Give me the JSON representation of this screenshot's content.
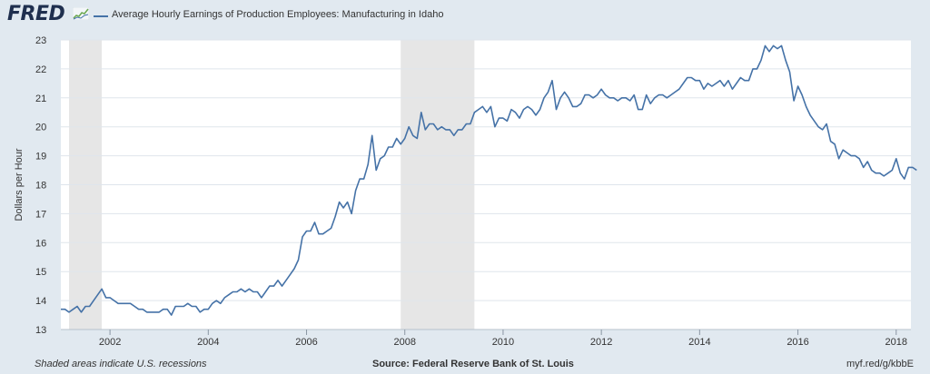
{
  "header": {
    "logo_text": "FRED",
    "logo_icon": "fred-sparkline-icon",
    "series_title": "Average Hourly Earnings of Production Employees: Manufacturing in Idaho"
  },
  "footer": {
    "note": "Shaded areas indicate U.S. recessions",
    "source": "Source: Federal Reserve Bank of St. Louis",
    "link": "myf.red/g/kbbE"
  },
  "colors": {
    "page_background": "#e1e9f0",
    "plot_background": "#ffffff",
    "line": "#4572a7",
    "recession_shading": "#e6e6e6",
    "gridline": "#dfe5ec"
  },
  "chart_data": {
    "type": "line",
    "title": "Average Hourly Earnings of Production Employees: Manufacturing in Idaho",
    "ylabel": "Dollars per Hour",
    "xlabel": "",
    "xlim": [
      2001.0,
      2018.3
    ],
    "ylim": [
      13,
      23
    ],
    "grid": "horizontal",
    "legend": "top-left",
    "x_ticks": [
      2002,
      2004,
      2006,
      2008,
      2010,
      2012,
      2014,
      2016,
      2018
    ],
    "x_tick_labels": [
      "2002",
      "2004",
      "2006",
      "2008",
      "2010",
      "2012",
      "2014",
      "2016",
      "2018"
    ],
    "y_ticks": [
      13,
      14,
      15,
      16,
      17,
      18,
      19,
      20,
      21,
      22,
      23
    ],
    "y_tick_labels": [
      "13",
      "14",
      "15",
      "16",
      "17",
      "18",
      "19",
      "20",
      "21",
      "22",
      "23"
    ],
    "recessions": [
      {
        "start": "2001-03",
        "end": "2001-11"
      },
      {
        "start": "2007-12",
        "end": "2009-06"
      }
    ],
    "series": [
      {
        "name": "Average Hourly Earnings of Production Employees: Manufacturing in Idaho",
        "points": [
          [
            "2001-01",
            13.7
          ],
          [
            "2001-02",
            13.7
          ],
          [
            "2001-03",
            13.6
          ],
          [
            "2001-04",
            13.7
          ],
          [
            "2001-05",
            13.8
          ],
          [
            "2001-06",
            13.6
          ],
          [
            "2001-07",
            13.8
          ],
          [
            "2001-08",
            13.8
          ],
          [
            "2001-09",
            14.0
          ],
          [
            "2001-10",
            14.2
          ],
          [
            "2001-11",
            14.4
          ],
          [
            "2001-12",
            14.1
          ],
          [
            "2002-01",
            14.1
          ],
          [
            "2002-02",
            14.0
          ],
          [
            "2002-03",
            13.9
          ],
          [
            "2002-04",
            13.9
          ],
          [
            "2002-05",
            13.9
          ],
          [
            "2002-06",
            13.9
          ],
          [
            "2002-07",
            13.8
          ],
          [
            "2002-08",
            13.7
          ],
          [
            "2002-09",
            13.7
          ],
          [
            "2002-10",
            13.6
          ],
          [
            "2002-11",
            13.6
          ],
          [
            "2002-12",
            13.6
          ],
          [
            "2003-01",
            13.6
          ],
          [
            "2003-02",
            13.7
          ],
          [
            "2003-03",
            13.7
          ],
          [
            "2003-04",
            13.5
          ],
          [
            "2003-05",
            13.8
          ],
          [
            "2003-06",
            13.8
          ],
          [
            "2003-07",
            13.8
          ],
          [
            "2003-08",
            13.9
          ],
          [
            "2003-09",
            13.8
          ],
          [
            "2003-10",
            13.8
          ],
          [
            "2003-11",
            13.6
          ],
          [
            "2003-12",
            13.7
          ],
          [
            "2004-01",
            13.7
          ],
          [
            "2004-02",
            13.9
          ],
          [
            "2004-03",
            14.0
          ],
          [
            "2004-04",
            13.9
          ],
          [
            "2004-05",
            14.1
          ],
          [
            "2004-06",
            14.2
          ],
          [
            "2004-07",
            14.3
          ],
          [
            "2004-08",
            14.3
          ],
          [
            "2004-09",
            14.4
          ],
          [
            "2004-10",
            14.3
          ],
          [
            "2004-11",
            14.4
          ],
          [
            "2004-12",
            14.3
          ],
          [
            "2005-01",
            14.3
          ],
          [
            "2005-02",
            14.1
          ],
          [
            "2005-03",
            14.3
          ],
          [
            "2005-04",
            14.5
          ],
          [
            "2005-05",
            14.5
          ],
          [
            "2005-06",
            14.7
          ],
          [
            "2005-07",
            14.5
          ],
          [
            "2005-08",
            14.7
          ],
          [
            "2005-09",
            14.9
          ],
          [
            "2005-10",
            15.1
          ],
          [
            "2005-11",
            15.4
          ],
          [
            "2005-12",
            16.2
          ],
          [
            "2006-01",
            16.4
          ],
          [
            "2006-02",
            16.4
          ],
          [
            "2006-03",
            16.7
          ],
          [
            "2006-04",
            16.3
          ],
          [
            "2006-05",
            16.3
          ],
          [
            "2006-06",
            16.4
          ],
          [
            "2006-07",
            16.5
          ],
          [
            "2006-08",
            16.9
          ],
          [
            "2006-09",
            17.4
          ],
          [
            "2006-10",
            17.2
          ],
          [
            "2006-11",
            17.4
          ],
          [
            "2006-12",
            17.0
          ],
          [
            "2007-01",
            17.8
          ],
          [
            "2007-02",
            18.2
          ],
          [
            "2007-03",
            18.2
          ],
          [
            "2007-04",
            18.7
          ],
          [
            "2007-05",
            19.7
          ],
          [
            "2007-06",
            18.5
          ],
          [
            "2007-07",
            18.9
          ],
          [
            "2007-08",
            19.0
          ],
          [
            "2007-09",
            19.3
          ],
          [
            "2007-10",
            19.3
          ],
          [
            "2007-11",
            19.6
          ],
          [
            "2007-12",
            19.4
          ],
          [
            "2008-01",
            19.6
          ],
          [
            "2008-02",
            20.0
          ],
          [
            "2008-03",
            19.7
          ],
          [
            "2008-04",
            19.6
          ],
          [
            "2008-05",
            20.5
          ],
          [
            "2008-06",
            19.9
          ],
          [
            "2008-07",
            20.1
          ],
          [
            "2008-08",
            20.1
          ],
          [
            "2008-09",
            19.9
          ],
          [
            "2008-10",
            20.0
          ],
          [
            "2008-11",
            19.9
          ],
          [
            "2008-12",
            19.9
          ],
          [
            "2009-01",
            19.7
          ],
          [
            "2009-02",
            19.9
          ],
          [
            "2009-03",
            19.9
          ],
          [
            "2009-04",
            20.1
          ],
          [
            "2009-05",
            20.1
          ],
          [
            "2009-06",
            20.5
          ],
          [
            "2009-07",
            20.6
          ],
          [
            "2009-08",
            20.7
          ],
          [
            "2009-09",
            20.5
          ],
          [
            "2009-10",
            20.7
          ],
          [
            "2009-11",
            20.0
          ],
          [
            "2009-12",
            20.3
          ],
          [
            "2010-01",
            20.3
          ],
          [
            "2010-02",
            20.2
          ],
          [
            "2010-03",
            20.6
          ],
          [
            "2010-04",
            20.5
          ],
          [
            "2010-05",
            20.3
          ],
          [
            "2010-06",
            20.6
          ],
          [
            "2010-07",
            20.7
          ],
          [
            "2010-08",
            20.6
          ],
          [
            "2010-09",
            20.4
          ],
          [
            "2010-10",
            20.6
          ],
          [
            "2010-11",
            21.0
          ],
          [
            "2010-12",
            21.2
          ],
          [
            "2011-01",
            21.6
          ],
          [
            "2011-02",
            20.6
          ],
          [
            "2011-03",
            21.0
          ],
          [
            "2011-04",
            21.2
          ],
          [
            "2011-05",
            21.0
          ],
          [
            "2011-06",
            20.7
          ],
          [
            "2011-07",
            20.7
          ],
          [
            "2011-08",
            20.8
          ],
          [
            "2011-09",
            21.1
          ],
          [
            "2011-10",
            21.1
          ],
          [
            "2011-11",
            21.0
          ],
          [
            "2011-12",
            21.1
          ],
          [
            "2012-01",
            21.3
          ],
          [
            "2012-02",
            21.1
          ],
          [
            "2012-03",
            21.0
          ],
          [
            "2012-04",
            21.0
          ],
          [
            "2012-05",
            20.9
          ],
          [
            "2012-06",
            21.0
          ],
          [
            "2012-07",
            21.0
          ],
          [
            "2012-08",
            20.9
          ],
          [
            "2012-09",
            21.1
          ],
          [
            "2012-10",
            20.6
          ],
          [
            "2012-11",
            20.6
          ],
          [
            "2012-12",
            21.1
          ],
          [
            "2013-01",
            20.8
          ],
          [
            "2013-02",
            21.0
          ],
          [
            "2013-03",
            21.1
          ],
          [
            "2013-04",
            21.1
          ],
          [
            "2013-05",
            21.0
          ],
          [
            "2013-06",
            21.1
          ],
          [
            "2013-07",
            21.2
          ],
          [
            "2013-08",
            21.3
          ],
          [
            "2013-09",
            21.5
          ],
          [
            "2013-10",
            21.7
          ],
          [
            "2013-11",
            21.7
          ],
          [
            "2013-12",
            21.6
          ],
          [
            "2014-01",
            21.6
          ],
          [
            "2014-02",
            21.3
          ],
          [
            "2014-03",
            21.5
          ],
          [
            "2014-04",
            21.4
          ],
          [
            "2014-05",
            21.5
          ],
          [
            "2014-06",
            21.6
          ],
          [
            "2014-07",
            21.4
          ],
          [
            "2014-08",
            21.6
          ],
          [
            "2014-09",
            21.3
          ],
          [
            "2014-10",
            21.5
          ],
          [
            "2014-11",
            21.7
          ],
          [
            "2014-12",
            21.6
          ],
          [
            "2015-01",
            21.6
          ],
          [
            "2015-02",
            22.0
          ],
          [
            "2015-03",
            22.0
          ],
          [
            "2015-04",
            22.3
          ],
          [
            "2015-05",
            22.8
          ],
          [
            "2015-06",
            22.6
          ],
          [
            "2015-07",
            22.8
          ],
          [
            "2015-08",
            22.7
          ],
          [
            "2015-09",
            22.8
          ],
          [
            "2015-10",
            22.3
          ],
          [
            "2015-11",
            21.9
          ],
          [
            "2015-12",
            20.9
          ],
          [
            "2016-01",
            21.4
          ],
          [
            "2016-02",
            21.1
          ],
          [
            "2016-03",
            20.7
          ],
          [
            "2016-04",
            20.4
          ],
          [
            "2016-05",
            20.2
          ],
          [
            "2016-06",
            20.0
          ],
          [
            "2016-07",
            19.9
          ],
          [
            "2016-08",
            20.1
          ],
          [
            "2016-09",
            19.5
          ],
          [
            "2016-10",
            19.4
          ],
          [
            "2016-11",
            18.9
          ],
          [
            "2016-12",
            19.2
          ],
          [
            "2017-01",
            19.1
          ],
          [
            "2017-02",
            19.0
          ],
          [
            "2017-03",
            19.0
          ],
          [
            "2017-04",
            18.9
          ],
          [
            "2017-05",
            18.6
          ],
          [
            "2017-06",
            18.8
          ],
          [
            "2017-07",
            18.5
          ],
          [
            "2017-08",
            18.4
          ],
          [
            "2017-09",
            18.4
          ],
          [
            "2017-10",
            18.3
          ],
          [
            "2017-11",
            18.4
          ],
          [
            "2017-12",
            18.5
          ],
          [
            "2018-01",
            18.9
          ],
          [
            "2018-02",
            18.4
          ],
          [
            "2018-03",
            18.2
          ],
          [
            "2018-04",
            18.6
          ],
          [
            "2018-05",
            18.6
          ],
          [
            "2018-06",
            18.5
          ]
        ]
      }
    ]
  }
}
